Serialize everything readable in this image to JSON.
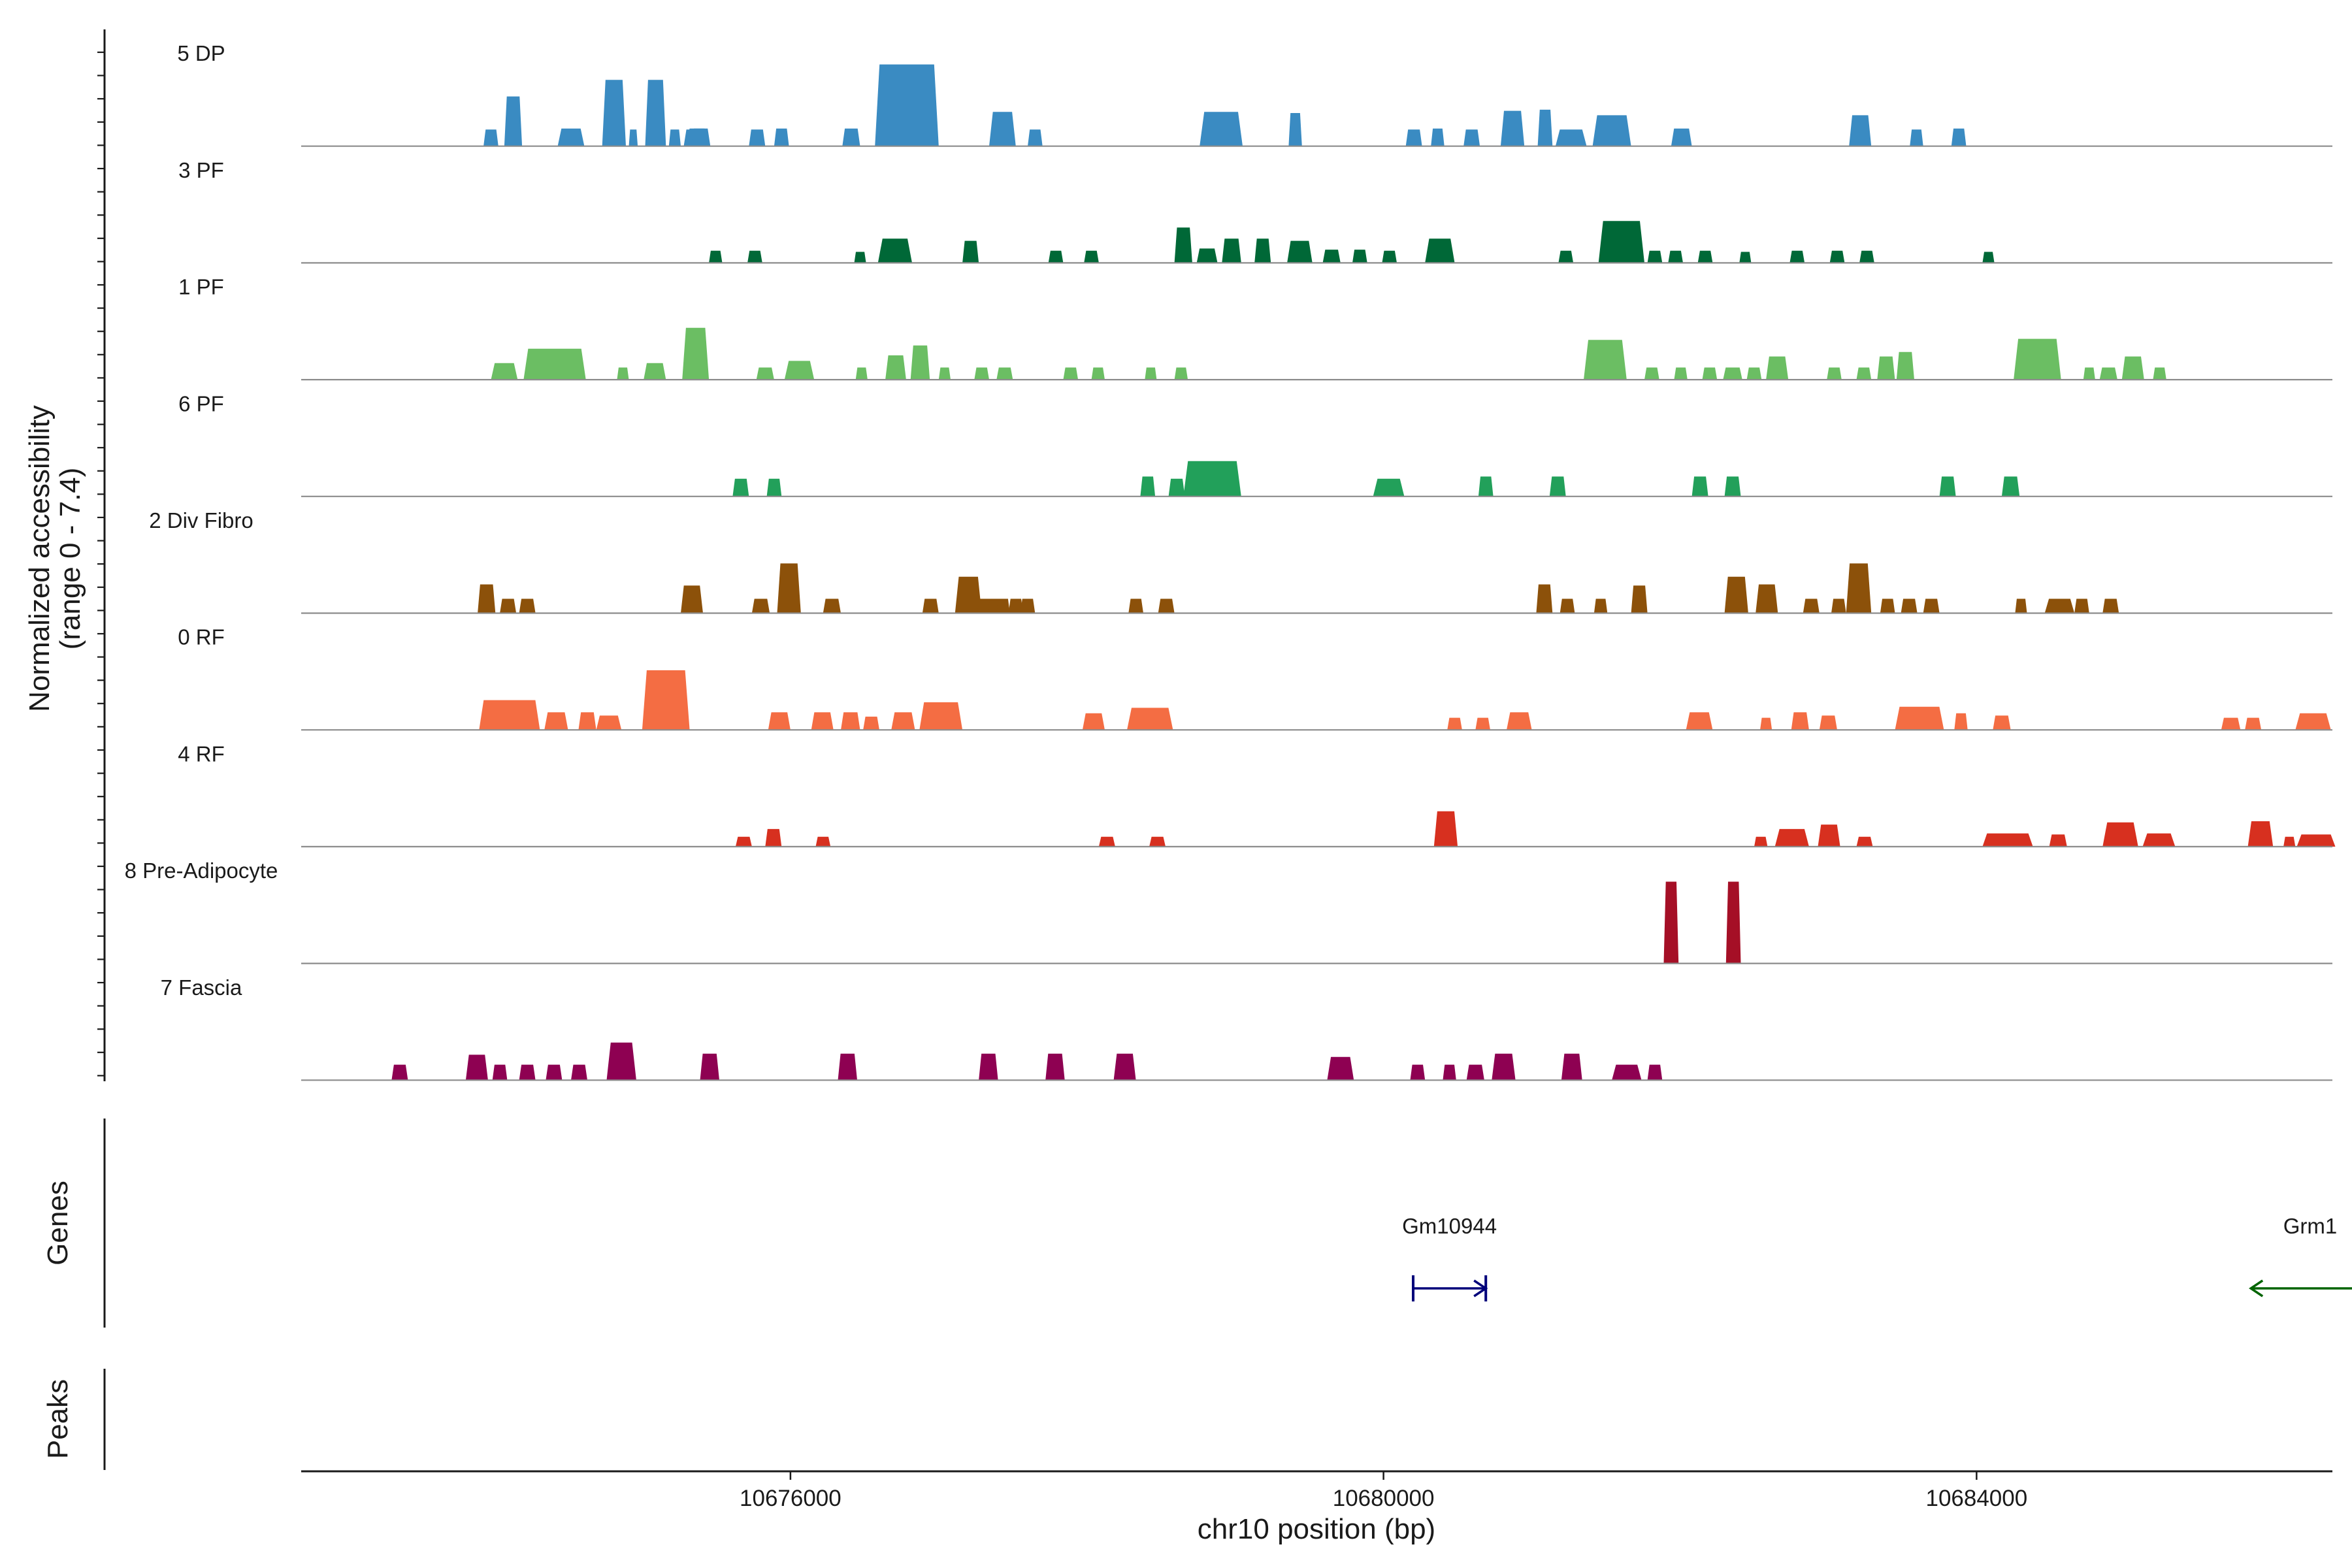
{
  "chart_data": {
    "type": "area",
    "title": "",
    "xlabel": "chr10 position (bp)",
    "ylabel_line1": "Normalized accessibility",
    "ylabel_line2": "(range 0 - 7.4)",
    "xlim": [
      10672700,
      10686400
    ],
    "ylim": [
      0,
      7.4
    ],
    "x_ticks": [
      10676000,
      10680000,
      10684000
    ],
    "x_tick_labels": [
      "10676000",
      "10680000",
      "10684000"
    ],
    "panel_titles": {
      "genes": "Genes",
      "peaks": "Peaks"
    },
    "series": [
      {
        "name": "5 DP",
        "color": "#3A8BC2",
        "peaks": [
          [
            10673930,
            10674030,
            1.5
          ],
          [
            10674070,
            10674190,
            4.5
          ],
          [
            10674430,
            10674610,
            1.6
          ],
          [
            10674730,
            10674890,
            6.0
          ],
          [
            10674910,
            10674970,
            1.5
          ],
          [
            10675020,
            10675160,
            6.0
          ],
          [
            10675180,
            10675260,
            1.5
          ],
          [
            10675280,
            10675410,
            1.5
          ],
          [
            10675300,
            10675440,
            1.6
          ],
          [
            10675310,
            10675420,
            1.5
          ],
          [
            10675330,
            10675460,
            1.6
          ],
          [
            10675720,
            10675830,
            1.5
          ],
          [
            10675890,
            10675990,
            1.6
          ],
          [
            10676350,
            10676470,
            1.6
          ],
          [
            10676570,
            10677000,
            7.4
          ],
          [
            10677340,
            10677520,
            3.1
          ],
          [
            10677600,
            10677700,
            1.5
          ],
          [
            10678760,
            10679050,
            3.1
          ],
          [
            10679360,
            10679450,
            3.0
          ],
          [
            10680150,
            10680260,
            1.5
          ],
          [
            10680320,
            10680410,
            1.6
          ],
          [
            10680540,
            10680650,
            1.5
          ],
          [
            10680790,
            10680950,
            3.2
          ],
          [
            10681040,
            10681140,
            3.3
          ],
          [
            10681160,
            10681370,
            1.5
          ],
          [
            10681410,
            10681670,
            2.8
          ],
          [
            10681940,
            10682080,
            1.6
          ],
          [
            10683140,
            10683290,
            2.8
          ],
          [
            10683550,
            10683640,
            1.5
          ],
          [
            10683830,
            10683930,
            1.6
          ]
        ]
      },
      {
        "name": "3 PF",
        "color": "#006837",
        "peaks": [
          [
            10675450,
            10675540,
            1.1
          ],
          [
            10675710,
            10675810,
            1.1
          ],
          [
            10676430,
            10676510,
            1.0
          ],
          [
            10676590,
            10676820,
            2.2
          ],
          [
            10677160,
            10677270,
            2.0
          ],
          [
            10677740,
            10677840,
            1.1
          ],
          [
            10677980,
            10678080,
            1.1
          ],
          [
            10678590,
            10678710,
            3.2
          ],
          [
            10678740,
            10678880,
            1.3
          ],
          [
            10678910,
            10679040,
            2.2
          ],
          [
            10679130,
            10679240,
            2.2
          ],
          [
            10679350,
            10679520,
            2.0
          ],
          [
            10679590,
            10679710,
            1.2
          ],
          [
            10679790,
            10679890,
            1.2
          ],
          [
            10679990,
            10680090,
            1.1
          ],
          [
            10680280,
            10680480,
            2.2
          ],
          [
            10681180,
            10681280,
            1.1
          ],
          [
            10681450,
            10681760,
            3.8
          ],
          [
            10681780,
            10681880,
            1.1
          ],
          [
            10681920,
            10682020,
            1.1
          ],
          [
            10682120,
            10682220,
            1.1
          ],
          [
            10682400,
            10682480,
            1.0
          ],
          [
            10682740,
            10682840,
            1.1
          ],
          [
            10683010,
            10683110,
            1.1
          ],
          [
            10683210,
            10683310,
            1.1
          ],
          [
            10684040,
            10684120,
            1.0
          ]
        ]
      },
      {
        "name": "1 PF",
        "color": "#6BBE63",
        "peaks": [
          [
            10673980,
            10674160,
            1.5
          ],
          [
            10674200,
            10674620,
            2.8
          ],
          [
            10674830,
            10674910,
            1.1
          ],
          [
            10675010,
            10675160,
            1.5
          ],
          [
            10675270,
            10675450,
            4.7
          ],
          [
            10675770,
            10675890,
            1.1
          ],
          [
            10675960,
            10676160,
            1.7
          ],
          [
            10676440,
            10676520,
            1.1
          ],
          [
            10676640,
            10676780,
            2.2
          ],
          [
            10676810,
            10676940,
            3.1
          ],
          [
            10677000,
            10677080,
            1.1
          ],
          [
            10677240,
            10677340,
            1.1
          ],
          [
            10677390,
            10677500,
            1.1
          ],
          [
            10677840,
            10677940,
            1.1
          ],
          [
            10678030,
            10678120,
            1.1
          ],
          [
            10678390,
            10678470,
            1.1
          ],
          [
            10678590,
            10678680,
            1.1
          ],
          [
            10681350,
            10681640,
            3.6
          ],
          [
            10681760,
            10681860,
            1.1
          ],
          [
            10681960,
            10682050,
            1.1
          ],
          [
            10682150,
            10682250,
            1.1
          ],
          [
            10682290,
            10682420,
            1.1
          ],
          [
            10682450,
            10682550,
            1.1
          ],
          [
            10682580,
            10682730,
            2.1
          ],
          [
            10682990,
            10683090,
            1.1
          ],
          [
            10683190,
            10683290,
            1.1
          ],
          [
            10683330,
            10683450,
            2.1
          ],
          [
            10683460,
            10683580,
            2.5
          ],
          [
            10684250,
            10684570,
            3.7
          ],
          [
            10684720,
            10684800,
            1.1
          ],
          [
            10684830,
            10684950,
            1.1
          ],
          [
            10684980,
            10685130,
            2.1
          ],
          [
            10685190,
            10685280,
            1.1
          ]
        ]
      },
      {
        "name": "6 PF",
        "color": "#22A05A",
        "peaks": [
          [
            10675610,
            10675720,
            1.6
          ],
          [
            10675840,
            10675940,
            1.6
          ],
          [
            10678360,
            10678460,
            1.8
          ],
          [
            10678550,
            10678660,
            1.6
          ],
          [
            10678650,
            10679040,
            3.2
          ],
          [
            10679930,
            10680140,
            1.6
          ],
          [
            10680640,
            10680740,
            1.8
          ],
          [
            10681120,
            10681230,
            1.8
          ],
          [
            10682080,
            10682190,
            1.8
          ],
          [
            10682300,
            10682410,
            1.8
          ],
          [
            10683750,
            10683860,
            1.8
          ],
          [
            10684170,
            10684290,
            1.8
          ]
        ]
      },
      {
        "name": "2 Div Fibro",
        "color": "#8C510A",
        "peaks": [
          [
            10673890,
            10674010,
            2.6
          ],
          [
            10674040,
            10674150,
            1.3
          ],
          [
            10674170,
            10674280,
            1.3
          ],
          [
            10675260,
            10675410,
            2.5
          ],
          [
            10675740,
            10675860,
            1.3
          ],
          [
            10675910,
            10676070,
            4.5
          ],
          [
            10676220,
            10676340,
            1.3
          ],
          [
            10676890,
            10677000,
            1.3
          ],
          [
            10677110,
            10677290,
            3.3
          ],
          [
            10677260,
            10677360,
            1.3
          ],
          [
            10677330,
            10677440,
            1.3
          ],
          [
            10677390,
            10677480,
            1.3
          ],
          [
            10677470,
            10677570,
            1.3
          ],
          [
            10677550,
            10677650,
            1.3
          ],
          [
            10678280,
            10678380,
            1.3
          ],
          [
            10678480,
            10678590,
            1.3
          ],
          [
            10681030,
            10681140,
            2.6
          ],
          [
            10681190,
            10681290,
            1.3
          ],
          [
            10681420,
            10681510,
            1.3
          ],
          [
            10681670,
            10681780,
            2.5
          ],
          [
            10682300,
            10682460,
            3.3
          ],
          [
            10682510,
            10682660,
            2.6
          ],
          [
            10682830,
            10682940,
            1.3
          ],
          [
            10683020,
            10683120,
            1.3
          ],
          [
            10683120,
            10683290,
            4.5
          ],
          [
            10683350,
            10683450,
            1.3
          ],
          [
            10683490,
            10683600,
            1.3
          ],
          [
            10683640,
            10683750,
            1.3
          ],
          [
            10684260,
            10684340,
            1.3
          ],
          [
            10684460,
            10684660,
            1.3
          ],
          [
            10684660,
            10684760,
            1.3
          ],
          [
            10684850,
            10684960,
            1.3
          ]
        ]
      },
      {
        "name": "0 RF",
        "color": "#F46D43",
        "peaks": [
          [
            10673900,
            10674310,
            2.7
          ],
          [
            10674340,
            10674500,
            1.6
          ],
          [
            10674570,
            10674690,
            1.6
          ],
          [
            10674690,
            10674860,
            1.3
          ],
          [
            10675000,
            10675320,
            5.4
          ],
          [
            10675850,
            10676000,
            1.6
          ],
          [
            10676140,
            10676290,
            1.6
          ],
          [
            10676340,
            10676470,
            1.6
          ],
          [
            10676490,
            10676600,
            1.2
          ],
          [
            10676680,
            10676840,
            1.6
          ],
          [
            10676870,
            10677160,
            2.5
          ],
          [
            10677970,
            10678120,
            1.5
          ],
          [
            10678270,
            10678580,
            2.0
          ],
          [
            10680430,
            10680530,
            1.1
          ],
          [
            10680620,
            10680720,
            1.1
          ],
          [
            10680830,
            10681000,
            1.6
          ],
          [
            10682040,
            10682220,
            1.6
          ],
          [
            10682540,
            10682620,
            1.1
          ],
          [
            10682750,
            10682870,
            1.6
          ],
          [
            10682940,
            10683060,
            1.3
          ],
          [
            10683450,
            10683780,
            2.1
          ],
          [
            10683850,
            10683940,
            1.5
          ],
          [
            10684110,
            10684230,
            1.3
          ],
          [
            10685650,
            10685780,
            1.1
          ],
          [
            10685810,
            10685920,
            1.1
          ],
          [
            10686150,
            10686390,
            1.5
          ]
        ]
      },
      {
        "name": "4 RF",
        "color": "#D7301F",
        "peaks": [
          [
            10675630,
            10675740,
            0.9
          ],
          [
            10675830,
            10675940,
            1.6
          ],
          [
            10676170,
            10676270,
            0.9
          ],
          [
            10678080,
            10678190,
            0.9
          ],
          [
            10678420,
            10678530,
            0.9
          ],
          [
            10680340,
            10680500,
            3.2
          ],
          [
            10682500,
            10682590,
            0.9
          ],
          [
            10682640,
            10682870,
            1.6
          ],
          [
            10682930,
            10683080,
            2.0
          ],
          [
            10683190,
            10683300,
            0.9
          ],
          [
            10684040,
            10684380,
            1.2
          ],
          [
            10684490,
            10684610,
            1.1
          ],
          [
            10684850,
            10685090,
            2.2
          ],
          [
            10685120,
            10685340,
            1.2
          ],
          [
            10685830,
            10686000,
            2.3
          ],
          [
            10686070,
            10686150,
            0.9
          ],
          [
            10686160,
            10686420,
            1.1
          ]
        ]
      },
      {
        "name": "8 Pre-Adipocyte",
        "color": "#A50F26",
        "peaks": [
          [
            10681890,
            10681990,
            7.4
          ],
          [
            10682310,
            10682410,
            7.4
          ]
        ]
      },
      {
        "name": "7 Fascia",
        "color": "#8E0152",
        "peaks": [
          [
            10673310,
            10673420,
            1.4
          ],
          [
            10673810,
            10673960,
            2.3
          ],
          [
            10673990,
            10674090,
            1.4
          ],
          [
            10674170,
            10674280,
            1.4
          ],
          [
            10674350,
            10674460,
            1.4
          ],
          [
            10674520,
            10674630,
            1.4
          ],
          [
            10674760,
            10674960,
            3.4
          ],
          [
            10675390,
            10675520,
            2.4
          ],
          [
            10676320,
            10676450,
            2.4
          ],
          [
            10677270,
            10677400,
            2.4
          ],
          [
            10677720,
            10677850,
            2.4
          ],
          [
            10678180,
            10678330,
            2.4
          ],
          [
            10679620,
            10679800,
            2.1
          ],
          [
            10680180,
            10680280,
            1.4
          ],
          [
            10680400,
            10680490,
            1.4
          ],
          [
            10680560,
            10680680,
            1.4
          ],
          [
            10680730,
            10680890,
            2.4
          ],
          [
            10681200,
            10681340,
            2.4
          ],
          [
            10681540,
            10681740,
            1.4
          ],
          [
            10681780,
            10681880,
            1.4
          ]
        ]
      }
    ],
    "genes": [
      {
        "name": "Gm10944",
        "start": 10680200,
        "end": 10680690,
        "strand": "+",
        "color": "#00007A"
      },
      {
        "name": "Grm1",
        "start": 10685850,
        "end": 10686650,
        "strand": "-",
        "color": "#006400"
      }
    ]
  }
}
